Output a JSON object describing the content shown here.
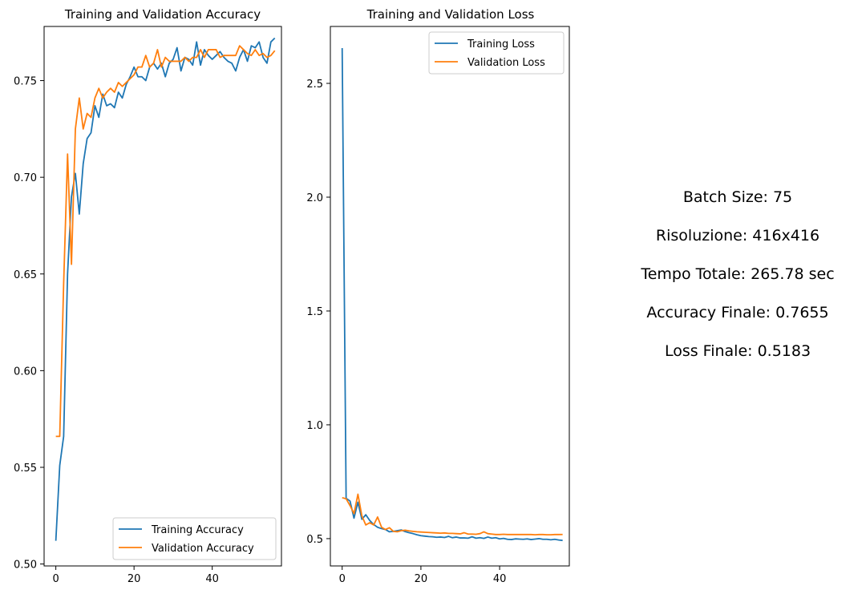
{
  "chart_data": [
    {
      "type": "line",
      "title": "Training and Validation Accuracy",
      "xlabel": "",
      "ylabel": "",
      "xlim": [
        -3,
        57.7
      ],
      "ylim": [
        0.499,
        0.778
      ],
      "xticks": [
        0,
        20,
        40
      ],
      "yticks": [
        0.5,
        0.55,
        0.6,
        0.65,
        0.7,
        0.75
      ],
      "ytick_labels": [
        "0.50",
        "0.55",
        "0.60",
        "0.65",
        "0.70",
        "0.75"
      ],
      "grid": false,
      "legend_position": "bottom-right",
      "series": [
        {
          "name": "Training Accuracy",
          "color": "#1f77b4",
          "values": [
            0.512,
            0.551,
            0.566,
            0.65,
            0.69,
            0.702,
            0.681,
            0.707,
            0.72,
            0.723,
            0.737,
            0.731,
            0.743,
            0.737,
            0.738,
            0.736,
            0.744,
            0.741,
            0.748,
            0.752,
            0.757,
            0.752,
            0.752,
            0.75,
            0.757,
            0.759,
            0.756,
            0.759,
            0.752,
            0.759,
            0.761,
            0.767,
            0.755,
            0.762,
            0.761,
            0.758,
            0.77,
            0.758,
            0.766,
            0.763,
            0.761,
            0.763,
            0.765,
            0.762,
            0.76,
            0.759,
            0.755,
            0.762,
            0.766,
            0.76,
            0.768,
            0.767,
            0.77,
            0.762,
            0.759,
            0.77,
            0.772
          ]
        },
        {
          "name": "Validation Accuracy",
          "color": "#ff7f0e",
          "values": [
            0.566,
            0.566,
            0.645,
            0.712,
            0.655,
            0.725,
            0.741,
            0.725,
            0.733,
            0.731,
            0.741,
            0.746,
            0.741,
            0.744,
            0.746,
            0.744,
            0.749,
            0.747,
            0.749,
            0.751,
            0.753,
            0.757,
            0.757,
            0.763,
            0.757,
            0.759,
            0.766,
            0.757,
            0.762,
            0.76,
            0.76,
            0.76,
            0.76,
            0.762,
            0.76,
            0.762,
            0.762,
            0.766,
            0.762,
            0.766,
            0.766,
            0.766,
            0.762,
            0.763,
            0.763,
            0.763,
            0.763,
            0.768,
            0.766,
            0.764,
            0.763,
            0.766,
            0.763,
            0.764,
            0.762,
            0.763,
            0.7655
          ]
        }
      ]
    },
    {
      "type": "line",
      "title": "Training and Validation Loss",
      "xlabel": "",
      "ylabel": "",
      "xlim": [
        -3,
        57.7
      ],
      "ylim": [
        0.38,
        2.75
      ],
      "xticks": [
        0,
        20,
        40
      ],
      "yticks": [
        0.5,
        1.0,
        1.5,
        2.0,
        2.5
      ],
      "ytick_labels": [
        "0.5",
        "1.0",
        "1.5",
        "2.0",
        "2.5"
      ],
      "grid": false,
      "legend_position": "top-right",
      "series": [
        {
          "name": "Training Loss",
          "color": "#1f77b4",
          "values": [
            2.655,
            0.677,
            0.665,
            0.59,
            0.66,
            0.585,
            0.605,
            0.58,
            0.562,
            0.55,
            0.544,
            0.54,
            0.53,
            0.532,
            0.535,
            0.538,
            0.531,
            0.526,
            0.522,
            0.517,
            0.513,
            0.511,
            0.509,
            0.508,
            0.506,
            0.507,
            0.505,
            0.51,
            0.504,
            0.507,
            0.503,
            0.503,
            0.502,
            0.508,
            0.502,
            0.504,
            0.501,
            0.507,
            0.502,
            0.504,
            0.499,
            0.501,
            0.497,
            0.496,
            0.499,
            0.498,
            0.497,
            0.499,
            0.496,
            0.498,
            0.5,
            0.497,
            0.497,
            0.495,
            0.497,
            0.494,
            0.492
          ]
        },
        {
          "name": "Validation Loss",
          "color": "#ff7f0e",
          "values": [
            0.68,
            0.675,
            0.645,
            0.61,
            0.695,
            0.6,
            0.56,
            0.57,
            0.56,
            0.595,
            0.55,
            0.54,
            0.548,
            0.532,
            0.53,
            0.535,
            0.537,
            0.534,
            0.532,
            0.53,
            0.529,
            0.528,
            0.527,
            0.526,
            0.525,
            0.524,
            0.525,
            0.523,
            0.523,
            0.522,
            0.521,
            0.526,
            0.52,
            0.52,
            0.519,
            0.522,
            0.53,
            0.522,
            0.52,
            0.518,
            0.518,
            0.519,
            0.518,
            0.518,
            0.518,
            0.518,
            0.518,
            0.518,
            0.518,
            0.517,
            0.518,
            0.518,
            0.517,
            0.517,
            0.518,
            0.518,
            0.5183
          ]
        }
      ]
    }
  ],
  "info_panel": {
    "lines": [
      "Batch Size: 75",
      "Risoluzione: 416x416",
      "Tempo Totale: 265.78 sec",
      "Accuracy Finale: 0.7655",
      "Loss Finale: 0.5183"
    ]
  }
}
